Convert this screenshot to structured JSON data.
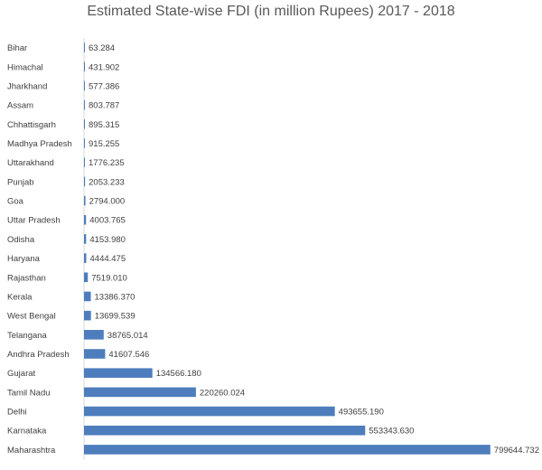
{
  "chart_data": {
    "type": "bar",
    "orientation": "horizontal",
    "title": "Estimated State-wise FDI (in million Rupees) 2017 - 2018",
    "xlabel": "",
    "ylabel": "",
    "grid": false,
    "legend": "none",
    "bar_color": "#4e7dbd",
    "xlim": [
      0,
      800000
    ],
    "categories": [
      "Bihar",
      "Himachal",
      "Jharkhand",
      "Assam",
      "Chhattisgarh",
      "Madhya Pradesh",
      "Uttarakhand",
      "Punjab",
      "Goa",
      "Uttar Pradesh",
      "Odisha",
      "Haryana",
      "Rajasthan",
      "Kerala",
      "West Bengal",
      "Telangana",
      "Andhra Pradesh",
      "Gujarat",
      "Tamil Nadu",
      "Delhi",
      "Karnataka",
      "Maharashtra"
    ],
    "values": [
      63.284,
      431.902,
      577.386,
      803.787,
      895.315,
      915.255,
      1776.235,
      2053.233,
      2794.0,
      4003.765,
      4153.98,
      4444.475,
      7519.01,
      13386.37,
      13699.539,
      38765.014,
      41607.546,
      134566.18,
      220260.024,
      493655.19,
      553343.63,
      799644.732
    ],
    "value_labels": [
      "63.284",
      "431.902",
      "577.386",
      "803.787",
      "895.315",
      "915.255",
      "1776.235",
      "2053.233",
      "2794.000",
      "4003.765",
      "4153.980",
      "4444.475",
      "7519.010",
      "13386.370",
      "13699.539",
      "38765.014",
      "41607.546",
      "134566.180",
      "220260.024",
      "493655.190",
      "553343.630",
      "799644.732"
    ]
  }
}
